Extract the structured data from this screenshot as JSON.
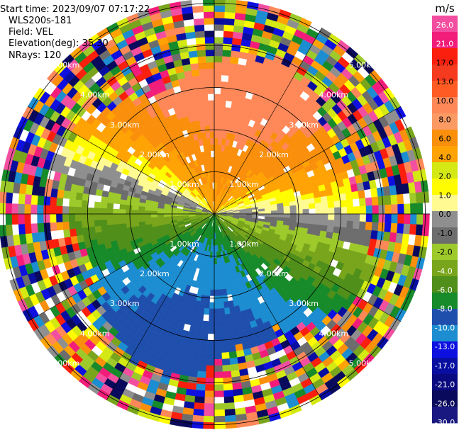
{
  "header": {
    "start_time": "Start time: 2023/09/07 07:17:22",
    "station": "WLS200s-181",
    "field": "Field: VEL",
    "elevation": "Elevation(deg): 35.30",
    "nrays": "NRays: 120"
  },
  "chart_data": {
    "type": "heatmap",
    "projection": "polar-ppi",
    "field": "VEL",
    "units": "m/s",
    "nrays": 120,
    "range_rings_km": [
      1.0,
      2.0,
      3.0,
      4.0,
      5.0
    ],
    "ring_labels": [
      "1.00km",
      "2.00km",
      "3.00km",
      "4.00km",
      "5.00km"
    ],
    "max_range_km": 5.1,
    "colorbar": {
      "title": "m/s",
      "ticks": [
        "26.0",
        "21.0",
        "17.0",
        "13.0",
        "10.0",
        "8.0",
        "6.0",
        "4.0",
        "2.0",
        "1.0",
        "0.0",
        "-1.0",
        "-2.0",
        "-4.0",
        "-6.0",
        "-8.0",
        "-10.0",
        "-13.0",
        "-17.0",
        "-21.0",
        "-26.0",
        "-30.0"
      ],
      "colors": [
        "#f34fa0",
        "#f21d7a",
        "#fb1f0d",
        "#f63a1f",
        "#ff5b22",
        "#ff8859",
        "#fb9a63",
        "#fa8f0c",
        "#ffa305",
        "#d4e813",
        "#fffb00",
        "#fffb92",
        "#8f8f8f",
        "#6d6d6d",
        "#9dc92b",
        "#78a51c",
        "#508f1a",
        "#178a2a",
        "#1f4fad",
        "#1c8dd0",
        "#0e10e0",
        "#080fa0",
        "#0a0a80",
        "#0a0a5c",
        "#181880"
      ]
    },
    "velocity_model": "near-field smooth wind: positive (approaching, red/orange/yellow) to the north, negative (receding, green/blue) to the south; beyond ~4 km mostly noise",
    "grid": true
  }
}
